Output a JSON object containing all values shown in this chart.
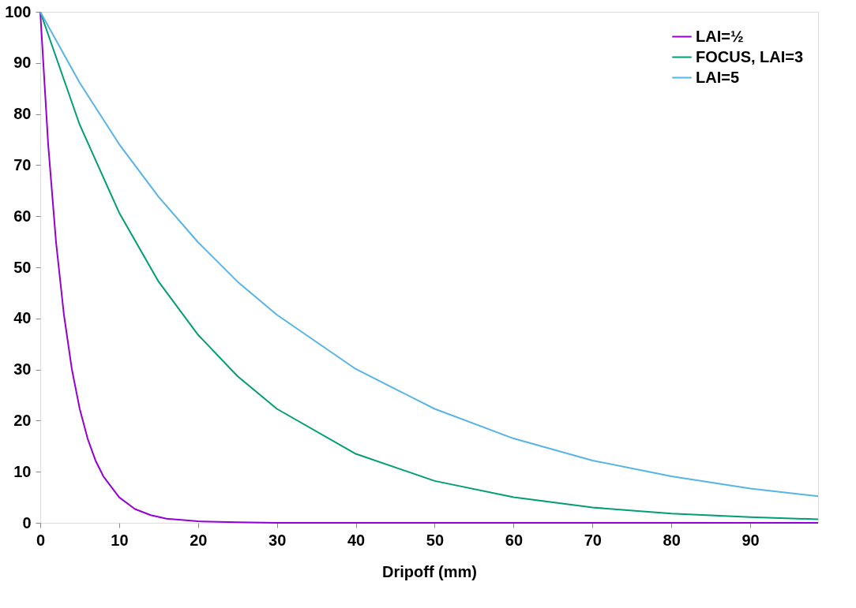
{
  "chart_data": {
    "type": "line",
    "xlabel": "Dripoff (mm)",
    "xlim": [
      0,
      98.6
    ],
    "ylim": [
      0,
      100
    ],
    "xticks": [
      0,
      10,
      20,
      30,
      40,
      50,
      60,
      70,
      80,
      90
    ],
    "yticks": [
      0,
      10,
      20,
      30,
      40,
      50,
      60,
      70,
      80,
      90,
      100
    ],
    "grid": false,
    "legend": "top right",
    "line_style": "solid",
    "series": [
      {
        "name": "LAI=½",
        "color": "#9400d3",
        "x": [
          0,
          1,
          2,
          3,
          4,
          5,
          6,
          7,
          8,
          10,
          12,
          14,
          16,
          20,
          25,
          30,
          40,
          60,
          80,
          98.6
        ],
        "values": [
          100,
          74.1,
          54.9,
          40.7,
          30.1,
          22.3,
          16.5,
          12.2,
          9.1,
          5.0,
          2.7,
          1.5,
          0.8,
          0.3,
          0.1,
          0,
          0,
          0,
          0,
          0
        ]
      },
      {
        "name": "FOCUS, LAI=3",
        "color": "#009e73",
        "x": [
          0,
          5,
          10,
          15,
          20,
          25,
          30,
          40,
          50,
          60,
          70,
          80,
          90,
          98.6
        ],
        "values": [
          100,
          77.9,
          60.7,
          47.2,
          36.8,
          28.7,
          22.3,
          13.5,
          8.2,
          5.0,
          3.0,
          1.8,
          1.1,
          0.7
        ]
      },
      {
        "name": "LAI=5",
        "color": "#56b4e9",
        "x": [
          0,
          5,
          10,
          15,
          20,
          25,
          30,
          40,
          50,
          60,
          70,
          80,
          90,
          98.6
        ],
        "values": [
          100,
          86.1,
          74.1,
          63.8,
          54.9,
          47.2,
          40.7,
          30.1,
          22.3,
          16.5,
          12.2,
          9.1,
          6.7,
          5.2
        ]
      }
    ]
  }
}
